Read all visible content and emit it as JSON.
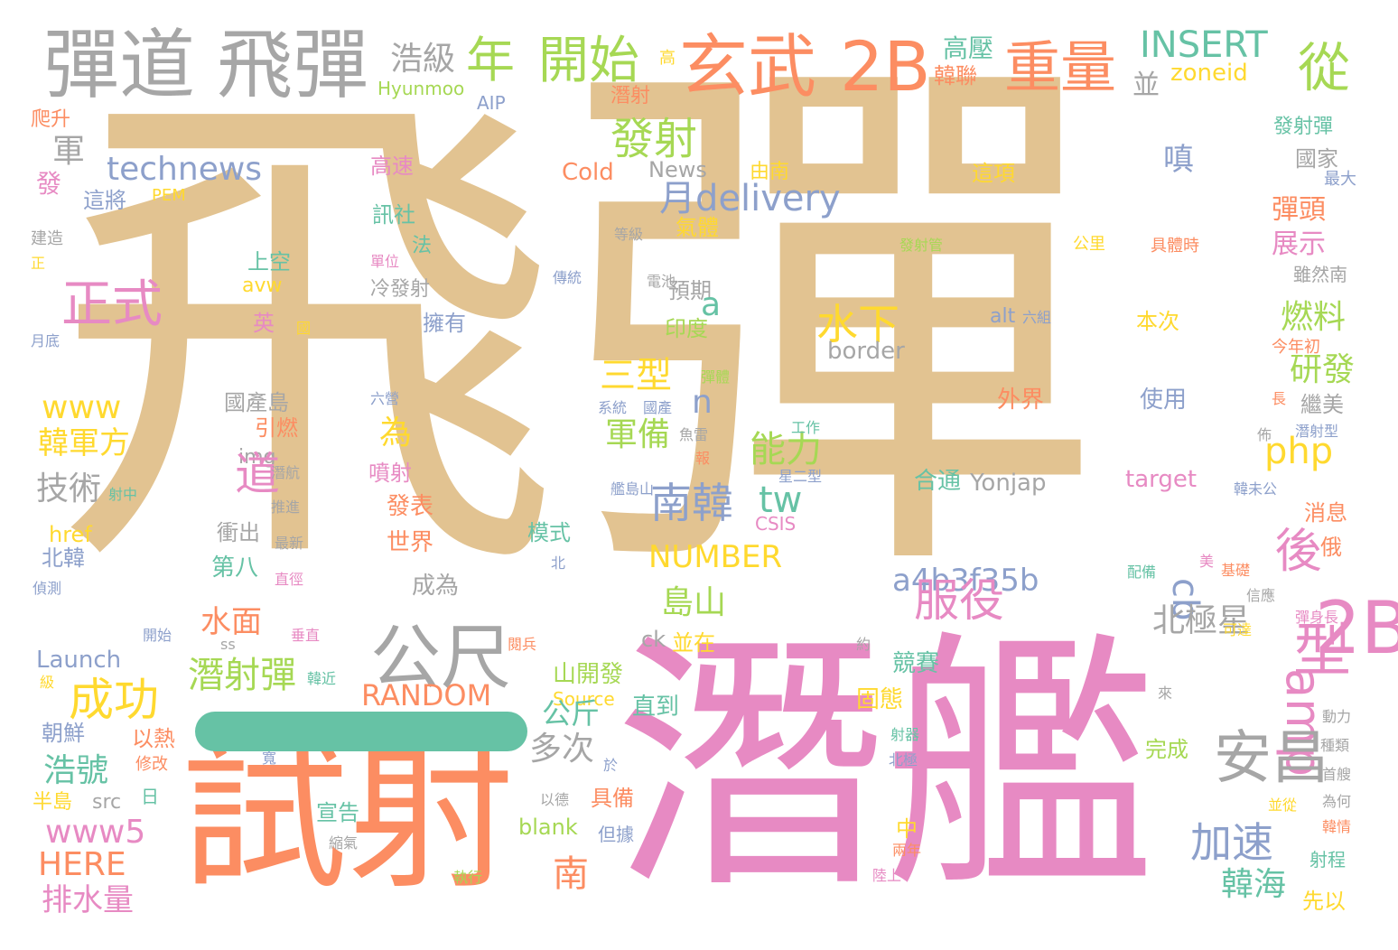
{
  "palette": {
    "tan": "#e2c391",
    "pink": "#e78ac3",
    "orange": "#fc8d62",
    "gray": "#a6a6a6",
    "green": "#66c2a5",
    "blue": "#8da0cb",
    "lime": "#a6d854",
    "yellow": "#ffd92f"
  },
  "words": [
    {
      "text": "飛",
      "c": "tan"
    },
    {
      "text": "彈",
      "c": "tan"
    },
    {
      "text": "潛艦",
      "c": "pink"
    },
    {
      "text": "試射",
      "c": "orange"
    },
    {
      "text": "彈道",
      "c": "gray"
    },
    {
      "text": "飛彈",
      "c": "gray"
    },
    {
      "text": "玄武",
      "c": "orange"
    },
    {
      "text": "2B",
      "c": "orange"
    },
    {
      "text": "重量",
      "c": "orange"
    },
    {
      "text": "開始",
      "c": "lime"
    },
    {
      "text": "年",
      "c": "lime"
    },
    {
      "text": "從",
      "c": "lime"
    },
    {
      "text": "INSERT",
      "c": "green"
    },
    {
      "text": "高壓",
      "c": "green"
    },
    {
      "text": "zoneid",
      "c": "yellow"
    },
    {
      "text": "韓聯",
      "c": "orange"
    },
    {
      "text": "浩級",
      "c": "gray"
    },
    {
      "text": "並",
      "c": "gray"
    },
    {
      "text": "Hyunmoo",
      "c": "lime"
    },
    {
      "text": "AIP",
      "c": "blue"
    },
    {
      "text": "潛射",
      "c": "orange"
    },
    {
      "text": "高",
      "c": "yellow"
    },
    {
      "text": "發射",
      "c": "lime"
    },
    {
      "text": "發射彈",
      "c": "green"
    },
    {
      "text": "國家",
      "c": "gray"
    },
    {
      "text": "最大",
      "c": "blue"
    },
    {
      "text": "technews",
      "c": "blue"
    },
    {
      "text": "軍",
      "c": "gray"
    },
    {
      "text": "爬升",
      "c": "orange"
    },
    {
      "text": "發",
      "c": "pink"
    },
    {
      "text": "這將",
      "c": "blue"
    },
    {
      "text": "PEM",
      "c": "yellow"
    },
    {
      "text": "高速",
      "c": "pink"
    },
    {
      "text": "Cold",
      "c": "orange"
    },
    {
      "text": "News",
      "c": "gray"
    },
    {
      "text": "由南",
      "c": "yellow"
    },
    {
      "text": "這項",
      "c": "yellow"
    },
    {
      "text": "嗔",
      "c": "blue"
    },
    {
      "text": "月delivery",
      "c": "blue"
    },
    {
      "text": "訊社",
      "c": "green"
    },
    {
      "text": "氣體",
      "c": "yellow"
    },
    {
      "text": "彈頭",
      "c": "orange"
    },
    {
      "text": "展示",
      "c": "pink"
    },
    {
      "text": "建造",
      "c": "gray"
    },
    {
      "text": "正",
      "c": "yellow"
    },
    {
      "text": "法",
      "c": "green"
    },
    {
      "text": "等級",
      "c": "gray"
    },
    {
      "text": "發射管",
      "c": "lime"
    },
    {
      "text": "公里",
      "c": "yellow"
    },
    {
      "text": "具體時",
      "c": "orange"
    },
    {
      "text": "雖然南",
      "c": "gray"
    },
    {
      "text": "上空",
      "c": "green"
    },
    {
      "text": "單位",
      "c": "pink"
    },
    {
      "text": "傳統",
      "c": "blue"
    },
    {
      "text": "電池",
      "c": "gray"
    },
    {
      "text": "預期",
      "c": "gray"
    },
    {
      "text": "avw",
      "c": "yellow"
    },
    {
      "text": "正式",
      "c": "pink"
    },
    {
      "text": "冷發射",
      "c": "gray"
    },
    {
      "text": "水下",
      "c": "yellow"
    },
    {
      "text": "a",
      "c": "green"
    },
    {
      "text": "燃料",
      "c": "lime"
    },
    {
      "text": "alt",
      "c": "blue"
    },
    {
      "text": "六組",
      "c": "blue"
    },
    {
      "text": "本次",
      "c": "yellow"
    },
    {
      "text": "英",
      "c": "pink"
    },
    {
      "text": "國",
      "c": "yellow"
    },
    {
      "text": "擁有",
      "c": "blue"
    },
    {
      "text": "印度",
      "c": "lime"
    },
    {
      "text": "月底",
      "c": "blue"
    },
    {
      "text": "border",
      "c": "gray"
    },
    {
      "text": "今年初",
      "c": "orange"
    },
    {
      "text": "研發",
      "c": "lime"
    },
    {
      "text": "三型",
      "c": "yellow"
    },
    {
      "text": "彈體",
      "c": "lime"
    },
    {
      "text": "n",
      "c": "blue"
    },
    {
      "text": "外界",
      "c": "orange"
    },
    {
      "text": "使用",
      "c": "blue"
    },
    {
      "text": "繼美",
      "c": "gray"
    },
    {
      "text": "www",
      "c": "yellow"
    },
    {
      "text": "國產島",
      "c": "gray"
    },
    {
      "text": "六營",
      "c": "blue"
    },
    {
      "text": "系統",
      "c": "blue"
    },
    {
      "text": "國產",
      "c": "blue"
    },
    {
      "text": "長",
      "c": "orange"
    },
    {
      "text": "引燃",
      "c": "orange"
    },
    {
      "text": "為",
      "c": "yellow"
    },
    {
      "text": "能力",
      "c": "lime"
    },
    {
      "text": "佈",
      "c": "gray"
    },
    {
      "text": "潛射型",
      "c": "blue"
    },
    {
      "text": "韓軍方",
      "c": "yellow"
    },
    {
      "text": "工作",
      "c": "green"
    },
    {
      "text": "魚雷",
      "c": "gray"
    },
    {
      "text": "軍備",
      "c": "lime"
    },
    {
      "text": "php",
      "c": "yellow"
    },
    {
      "text": "img",
      "c": "gray"
    },
    {
      "text": "道",
      "c": "pink"
    },
    {
      "text": "報",
      "c": "orange"
    },
    {
      "text": "技術",
      "c": "gray"
    },
    {
      "text": "潛航",
      "c": "gray"
    },
    {
      "text": "噴射",
      "c": "pink"
    },
    {
      "text": "星二型",
      "c": "blue"
    },
    {
      "text": "合通",
      "c": "green"
    },
    {
      "text": "Yonjap",
      "c": "gray"
    },
    {
      "text": "target",
      "c": "pink"
    },
    {
      "text": "射中",
      "c": "green"
    },
    {
      "text": "推進",
      "c": "gray"
    },
    {
      "text": "艦島山",
      "c": "blue"
    },
    {
      "text": "韓未公",
      "c": "blue"
    },
    {
      "text": "南韓",
      "c": "blue"
    },
    {
      "text": "tw",
      "c": "green"
    },
    {
      "text": "後",
      "c": "pink"
    },
    {
      "text": "發表",
      "c": "orange"
    },
    {
      "text": "CSIS",
      "c": "pink"
    },
    {
      "text": "消息",
      "c": "orange"
    },
    {
      "text": "href",
      "c": "yellow"
    },
    {
      "text": "衝出",
      "c": "gray"
    },
    {
      "text": "NUMBER",
      "c": "yellow"
    },
    {
      "text": "世界",
      "c": "orange"
    },
    {
      "text": "模式",
      "c": "green"
    },
    {
      "text": "北韓",
      "c": "blue"
    },
    {
      "text": "最新",
      "c": "gray"
    },
    {
      "text": "俄",
      "c": "orange"
    },
    {
      "text": "第八",
      "c": "green"
    },
    {
      "text": "北",
      "c": "blue"
    },
    {
      "text": "美",
      "c": "pink"
    },
    {
      "text": "基礎",
      "c": "orange"
    },
    {
      "text": "配備",
      "c": "green"
    },
    {
      "text": "偵測",
      "c": "blue"
    },
    {
      "text": "直徑",
      "c": "pink"
    },
    {
      "text": "a4b3f35b",
      "c": "blue"
    },
    {
      "text": "成為",
      "c": "gray"
    },
    {
      "text": "cb",
      "c": "blue"
    },
    {
      "text": "服役",
      "c": "pink"
    },
    {
      "text": "信應",
      "c": "gray"
    },
    {
      "text": "島山",
      "c": "lime"
    },
    {
      "text": "北極星",
      "c": "gray"
    },
    {
      "text": "彈身長",
      "c": "pink"
    },
    {
      "text": "水面",
      "c": "orange"
    },
    {
      "text": "垂直",
      "c": "pink"
    },
    {
      "text": "開始",
      "c": "blue"
    },
    {
      "text": "ss",
      "c": "gray"
    },
    {
      "text": "ck",
      "c": "gray"
    },
    {
      "text": "並在",
      "c": "yellow"
    },
    {
      "text": "閱兵",
      "c": "orange"
    },
    {
      "text": "可達",
      "c": "yellow"
    },
    {
      "text": "2B",
      "c": "pink"
    },
    {
      "text": "型",
      "c": "pink"
    },
    {
      "text": "約",
      "c": "gray"
    },
    {
      "text": "Launch",
      "c": "blue"
    },
    {
      "text": "amp",
      "c": "pink"
    },
    {
      "text": "公尺",
      "c": "gray"
    },
    {
      "text": "成功",
      "c": "yellow"
    },
    {
      "text": "潛射彈",
      "c": "lime"
    },
    {
      "text": "韓近",
      "c": "green"
    },
    {
      "text": "RANDOM",
      "c": "orange"
    },
    {
      "text": "山開發",
      "c": "lime"
    },
    {
      "text": "競賽",
      "c": "green"
    },
    {
      "text": "級",
      "c": "yellow"
    },
    {
      "text": "安昌",
      "c": "gray"
    },
    {
      "text": "來",
      "c": "gray"
    },
    {
      "text": "Source",
      "c": "yellow"
    },
    {
      "text": "固態",
      "c": "yellow"
    },
    {
      "text": "動力",
      "c": "gray"
    },
    {
      "text": "直到",
      "c": "green"
    },
    {
      "text": "公斤",
      "c": "green"
    },
    {
      "text": "射器",
      "c": "green"
    },
    {
      "text": "朝鮮",
      "c": "blue"
    },
    {
      "text": "以熱",
      "c": "orange"
    },
    {
      "text": "種類",
      "c": "gray"
    },
    {
      "text": "完成",
      "c": "lime"
    },
    {
      "text": "寬",
      "c": "blue"
    },
    {
      "text": "於",
      "c": "blue"
    },
    {
      "text": "北極",
      "c": "blue"
    },
    {
      "text": "修改",
      "c": "orange"
    },
    {
      "text": "多次",
      "c": "gray"
    },
    {
      "text": "首艘",
      "c": "gray"
    },
    {
      "text": "浩號",
      "c": "green"
    },
    {
      "text": "日",
      "c": "green"
    },
    {
      "text": "加速",
      "c": "blue"
    },
    {
      "text": "半島",
      "c": "yellow"
    },
    {
      "text": "src",
      "c": "gray"
    },
    {
      "text": "具備",
      "c": "orange"
    },
    {
      "text": "為何",
      "c": "gray"
    },
    {
      "text": "以德",
      "c": "gray"
    },
    {
      "text": "並從",
      "c": "yellow"
    },
    {
      "text": "宣告",
      "c": "green"
    },
    {
      "text": "www5",
      "c": "pink"
    },
    {
      "text": "blank",
      "c": "lime"
    },
    {
      "text": "但據",
      "c": "blue"
    },
    {
      "text": "中",
      "c": "yellow"
    },
    {
      "text": "韓情",
      "c": "orange"
    },
    {
      "text": "縮氣",
      "c": "gray"
    },
    {
      "text": "兩年",
      "c": "orange"
    },
    {
      "text": "HERE",
      "c": "orange"
    },
    {
      "text": "南",
      "c": "orange"
    },
    {
      "text": "韓海",
      "c": "green"
    },
    {
      "text": "射程",
      "c": "green"
    },
    {
      "text": "執行",
      "c": "lime"
    },
    {
      "text": "陸上",
      "c": "pink"
    },
    {
      "text": "排水量",
      "c": "pink"
    },
    {
      "text": "先以",
      "c": "yellow"
    }
  ]
}
